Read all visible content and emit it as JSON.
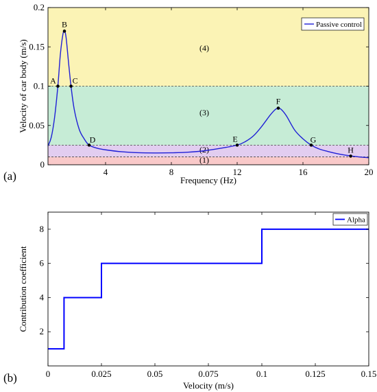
{
  "chart_data": [
    {
      "panel": "(a)",
      "type": "line",
      "xlabel": "Frequency (Hz)",
      "ylabel": "Velocity of car body (m/s)",
      "xlim": [
        0.5,
        20
      ],
      "ylim": [
        0,
        0.2
      ],
      "xticks": [
        4,
        8,
        12,
        16,
        20
      ],
      "xtick_labels": [
        "4",
        "8",
        "12",
        "16",
        "20"
      ],
      "yticks": [
        0,
        0.05,
        0.1,
        0.15,
        0.2
      ],
      "ytick_labels": [
        "0",
        "0.05",
        "0.1",
        "0.15",
        "0.2"
      ],
      "legend": {
        "position": "top-right",
        "entries": [
          "Passive control"
        ]
      },
      "series": [
        {
          "name": "Passive control",
          "color": "#1f1fd6",
          "x": [
            0.5,
            0.7,
            0.9,
            1.1,
            1.25,
            1.4,
            1.5,
            1.6,
            1.75,
            1.9,
            2.1,
            2.4,
            2.7,
            3.0,
            3.5,
            4,
            5,
            6,
            7,
            8,
            9,
            10,
            11,
            12,
            12.5,
            13,
            13.5,
            14,
            14.3,
            14.5,
            14.7,
            15,
            15.5,
            16,
            16.5,
            17,
            17.5,
            18,
            18.5,
            19,
            19.5,
            20
          ],
          "y": [
            0.024,
            0.035,
            0.06,
            0.1,
            0.14,
            0.165,
            0.17,
            0.162,
            0.13,
            0.1,
            0.07,
            0.045,
            0.033,
            0.025,
            0.021,
            0.019,
            0.0165,
            0.0153,
            0.015,
            0.0152,
            0.016,
            0.0178,
            0.021,
            0.025,
            0.0295,
            0.037,
            0.049,
            0.063,
            0.07,
            0.072,
            0.07,
            0.062,
            0.044,
            0.033,
            0.025,
            0.02,
            0.017,
            0.0145,
            0.0125,
            0.011,
            0.0098,
            0.009
          ]
        }
      ],
      "threshold_lines": [
        0.1,
        0.025,
        0.01
      ],
      "regions": [
        {
          "label": "(1)",
          "from": 0,
          "to": 0.01,
          "color": "#f9c9c9"
        },
        {
          "label": "(2)",
          "from": 0.01,
          "to": 0.025,
          "color": "#e2cdf0"
        },
        {
          "label": "(3)",
          "from": 0.025,
          "to": 0.1,
          "color": "#c6ecd6"
        },
        {
          "label": "(4)",
          "from": 0.1,
          "to": 0.2,
          "color": "#fbf3b5"
        }
      ],
      "points": [
        {
          "label": "A",
          "x": 1.1,
          "y": 0.1
        },
        {
          "label": "B",
          "x": 1.5,
          "y": 0.17
        },
        {
          "label": "C",
          "x": 1.9,
          "y": 0.1
        },
        {
          "label": "D",
          "x": 3.0,
          "y": 0.025
        },
        {
          "label": "E",
          "x": 12.0,
          "y": 0.025
        },
        {
          "label": "F",
          "x": 14.5,
          "y": 0.072
        },
        {
          "label": "G",
          "x": 16.5,
          "y": 0.025
        },
        {
          "label": "H",
          "x": 18.9,
          "y": 0.011
        }
      ]
    },
    {
      "panel": "(b)",
      "type": "line",
      "xlabel": "Velocity (m/s)",
      "ylabel": "Contribution coefficient",
      "xlim": [
        0,
        0.15
      ],
      "ylim": [
        0,
        9
      ],
      "xticks": [
        0,
        0.025,
        0.05,
        0.075,
        0.1,
        0.125,
        0.15
      ],
      "xtick_labels": [
        "0",
        "0.025",
        "0.05",
        "0.075",
        "0.1",
        "0.125",
        "0.15"
      ],
      "yticks": [
        2,
        4,
        6,
        8
      ],
      "ytick_labels": [
        "2",
        "4",
        "6",
        "8"
      ],
      "legend": {
        "position": "top-right",
        "entries": [
          "Alpha"
        ]
      },
      "series": [
        {
          "name": "Alpha",
          "color": "#0000ff",
          "x": [
            0,
            0.0075,
            0.0075,
            0.025,
            0.025,
            0.1,
            0.1,
            0.15
          ],
          "y": [
            1,
            1,
            4,
            4,
            6,
            6,
            8,
            8
          ]
        }
      ]
    }
  ]
}
